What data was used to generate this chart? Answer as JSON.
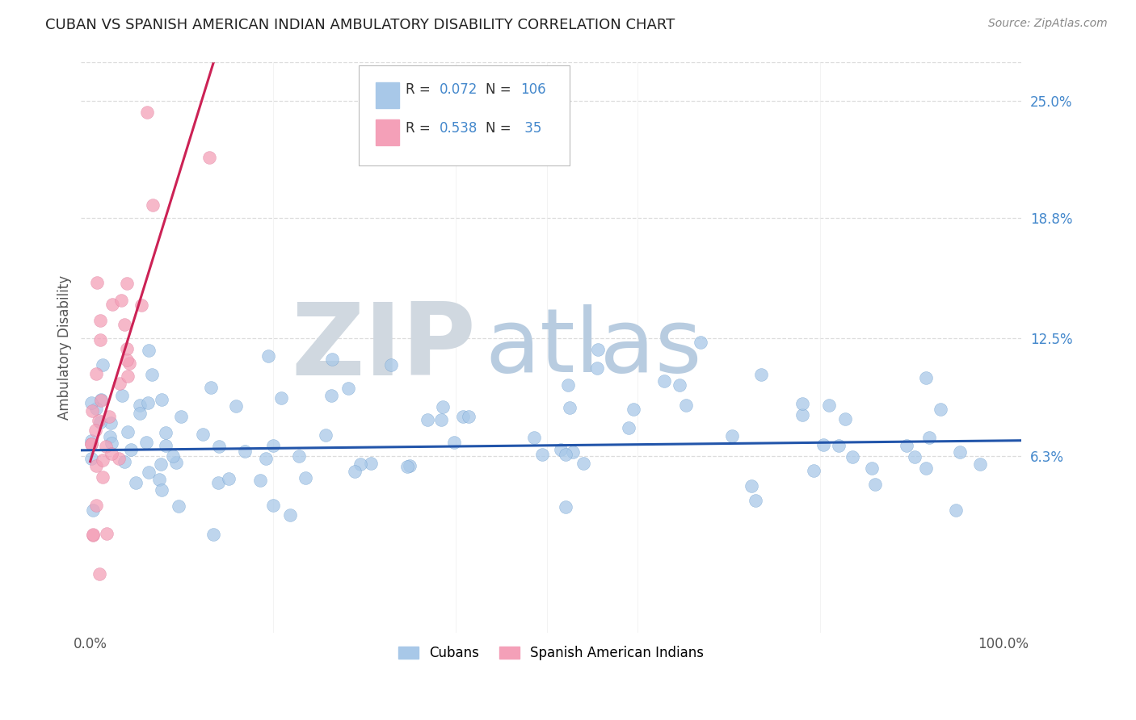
{
  "title": "CUBAN VS SPANISH AMERICAN INDIAN AMBULATORY DISABILITY CORRELATION CHART",
  "source": "Source: ZipAtlas.com",
  "ylabel": "Ambulatory Disability",
  "legend_r_blue": "0.072",
  "legend_n_blue": "106",
  "legend_r_pink": "0.538",
  "legend_n_pink": " 35",
  "blue_color": "#a8c8e8",
  "pink_color": "#f4a0b8",
  "line_blue_color": "#2255aa",
  "line_pink_color": "#cc2255",
  "line_dashed_color": "#ccaaaa",
  "watermark_zip": "ZIP",
  "watermark_atlas": "atlas",
  "watermark_zip_color": "#d0d8e0",
  "watermark_atlas_color": "#b8cce0",
  "background_color": "#ffffff",
  "grid_color": "#dddddd",
  "ytick_vals": [
    0.063,
    0.125,
    0.188,
    0.25
  ],
  "ytick_labels": [
    "6.3%",
    "12.5%",
    "18.8%",
    "25.0%"
  ],
  "ylim_min": -0.03,
  "ylim_max": 0.27,
  "xlim_min": -0.01,
  "xlim_max": 1.02
}
